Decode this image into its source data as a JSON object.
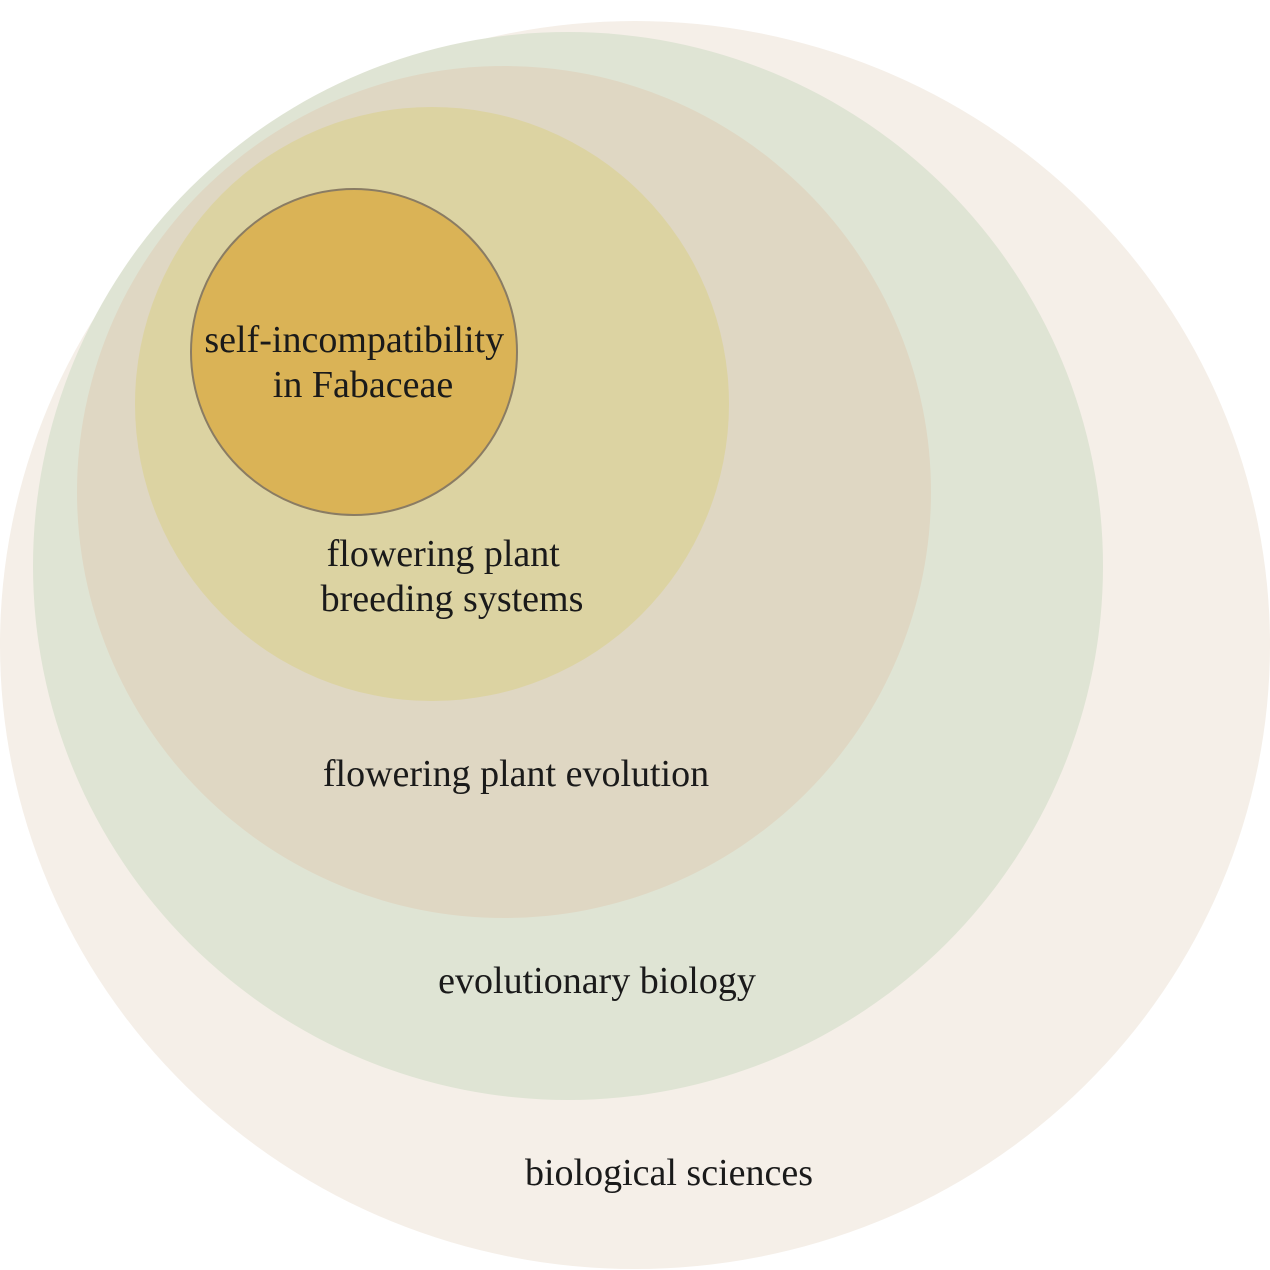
{
  "diagram": {
    "circles": [
      {
        "id": "biological-sciences",
        "label_lines": [
          "biological sciences"
        ],
        "fill": "#f5efe8"
      },
      {
        "id": "evolutionary-biology",
        "label_lines": [
          "evolutionary biology"
        ],
        "fill": "#dfe4d4"
      },
      {
        "id": "flowering-plant-evolution",
        "label_lines": [
          "flowering plant evolution"
        ],
        "fill": "#dfd7c3"
      },
      {
        "id": "flowering-plant-breeding-systems",
        "label_lines": [
          "flowering plant",
          "breeding systems"
        ],
        "fill": "#dcd3a2"
      },
      {
        "id": "self-incompatibility-in-fabaceae",
        "label_lines": [
          "self-incompatibility",
          "in Fabaceae"
        ],
        "fill": "#dab356",
        "stroke": "#8a7c63"
      }
    ]
  }
}
